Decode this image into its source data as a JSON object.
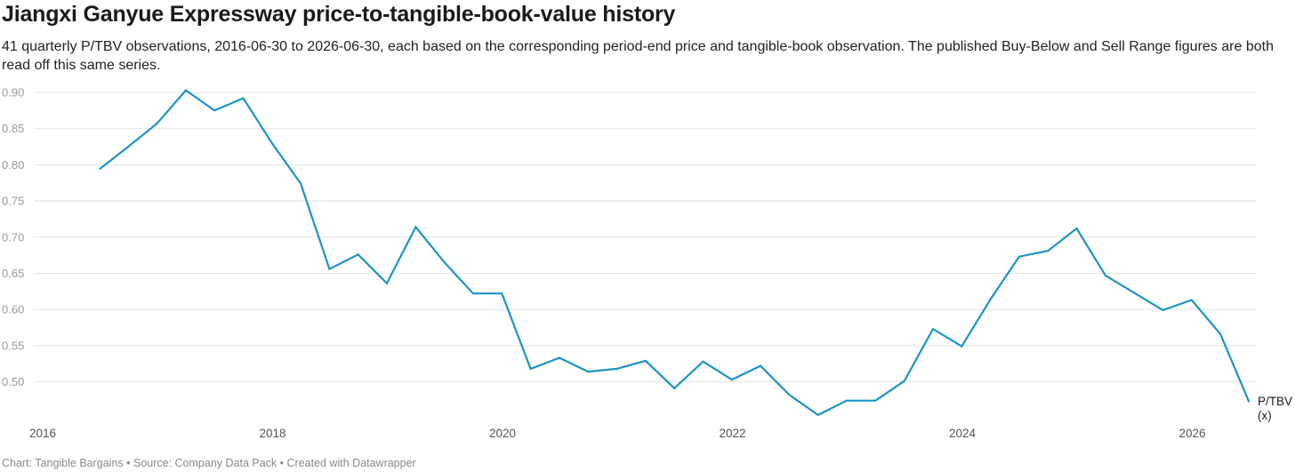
{
  "title": "Jiangxi Ganyue Expressway price-to-tangible-book-value history",
  "subtitle": "41 quarterly P/TBV observations, 2016-06-30 to 2026-06-30, each based on the corresponding period-end price and tangible-book observation. The published Buy-Below and Sell Range figures are both read off this same series.",
  "footer": "Chart: Tangible Bargains • Source: Company Data Pack • Created with Datawrapper",
  "colors": {
    "line": "#1c94c4",
    "grid": "#e3e3e3"
  },
  "chart_data": {
    "type": "line",
    "x_start": "2016-06-30",
    "x_interval": "quarterly",
    "x_ticks": [
      "2016",
      "2018",
      "2020",
      "2022",
      "2024",
      "2026"
    ],
    "y_ticks": [
      "0.90",
      "0.85",
      "0.80",
      "0.75",
      "0.70",
      "0.65",
      "0.60",
      "0.55",
      "0.50"
    ],
    "ylim": [
      0.455,
      0.905
    ],
    "grid": true,
    "series": [
      {
        "name": "P/TBV\n(x)",
        "values": [
          0.794,
          0.825,
          0.857,
          0.903,
          0.875,
          0.892,
          0.83,
          0.774,
          0.656,
          0.676,
          0.636,
          0.714,
          0.665,
          0.622,
          0.622,
          0.518,
          0.533,
          0.514,
          0.518,
          0.529,
          0.491,
          0.528,
          0.503,
          0.522,
          0.482,
          0.454,
          0.474,
          0.474,
          0.501,
          0.573,
          0.549,
          0.614,
          0.673,
          0.681,
          0.712,
          0.647,
          0.623,
          0.599,
          0.613,
          0.566,
          0.472
        ]
      }
    ]
  }
}
